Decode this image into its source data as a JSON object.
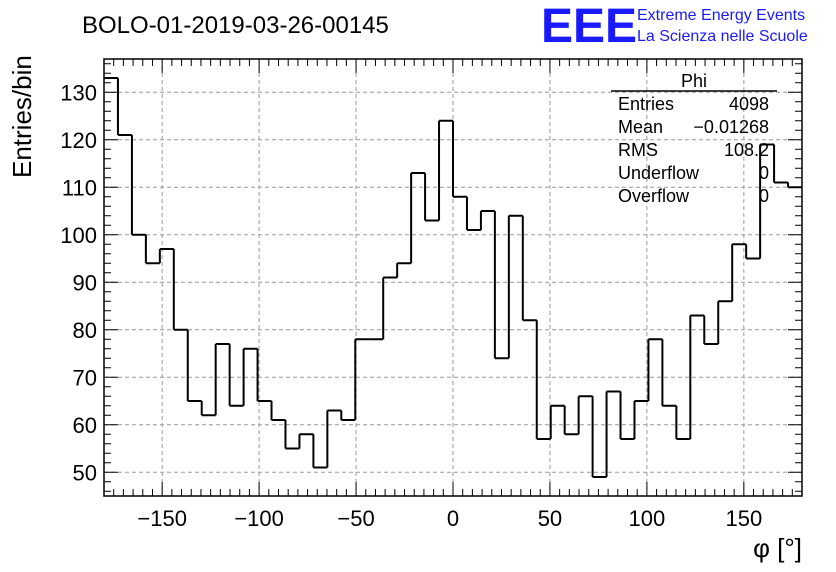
{
  "header": {
    "run_title": "BOLO-01-2019-03-26-00145",
    "logo_text": "EEE",
    "logo_line1": "Extreme Energy Events",
    "logo_line2": "La Scienza nelle Scuole"
  },
  "stats_box": {
    "title": "Phi",
    "rows": [
      {
        "label": "Entries",
        "value": "4098"
      },
      {
        "label": "Mean",
        "value": "−0.01268"
      },
      {
        "label": "RMS",
        "value": "108.2"
      },
      {
        "label": "Underflow",
        "value": "0"
      },
      {
        "label": "Overflow",
        "value": "0"
      }
    ]
  },
  "chart_data": {
    "type": "bar",
    "histogram": true,
    "title": "BOLO-01-2019-03-26-00145",
    "xlabel": "φ [°]",
    "ylabel": "Entries/bin",
    "xlim": [
      -180,
      180
    ],
    "ylim": [
      45,
      137
    ],
    "bin_width": 7.2,
    "x_ticks": [
      -150,
      -100,
      -50,
      0,
      50,
      100,
      150
    ],
    "x_tick_labels": [
      "−150",
      "−100",
      "−50",
      "0",
      "50",
      "100",
      "150"
    ],
    "y_ticks": [
      50,
      60,
      70,
      80,
      90,
      100,
      110,
      120,
      130
    ],
    "y_tick_labels": [
      "50",
      "60",
      "70",
      "80",
      "90",
      "100",
      "110",
      "120",
      "130"
    ],
    "grid": true,
    "values": [
      133,
      121,
      100,
      94,
      97,
      80,
      65,
      62,
      77,
      64,
      76,
      65,
      61,
      55,
      58,
      51,
      63,
      61,
      78,
      78,
      91,
      94,
      113,
      103,
      124,
      108,
      101,
      105,
      74,
      104,
      82,
      57,
      64,
      58,
      66,
      49,
      67,
      57,
      65,
      78,
      64,
      57,
      83,
      77,
      86,
      98,
      95,
      119,
      111,
      110
    ]
  }
}
